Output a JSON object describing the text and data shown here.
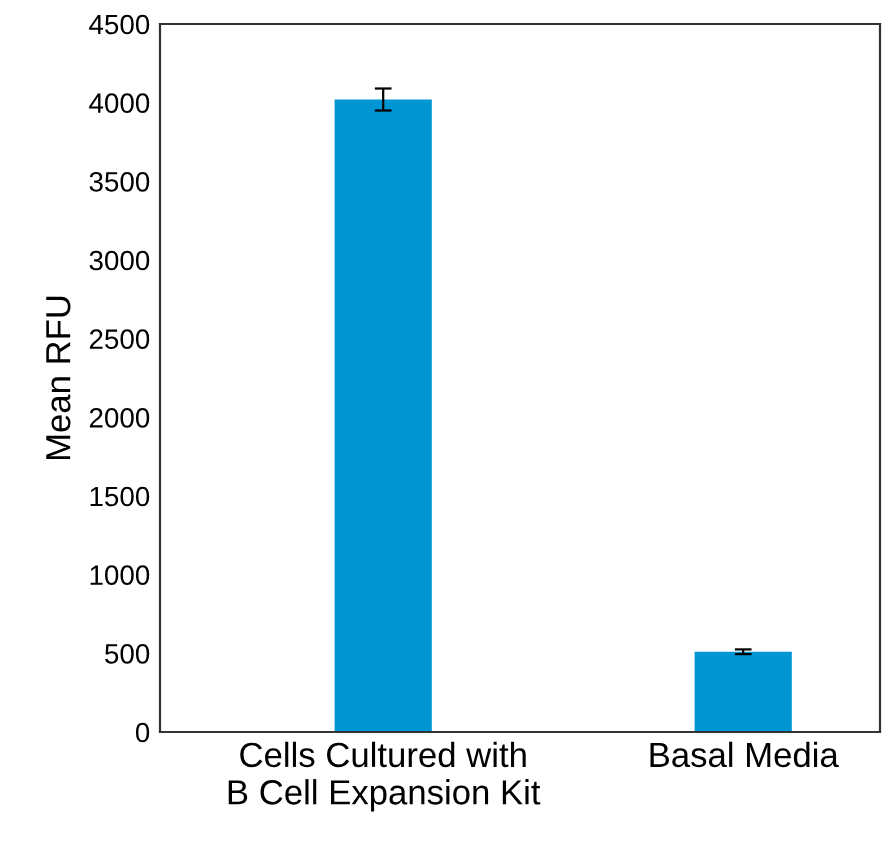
{
  "chart_data": {
    "type": "bar",
    "ylabel": "Mean RFU",
    "categories": [
      "Cells Cultured with\nB Cell Expansion Kit",
      "Basal Media"
    ],
    "values": [
      4020,
      510
    ],
    "errors": [
      70,
      15
    ],
    "color": "#0095d3",
    "ylim": [
      0,
      4500
    ],
    "yticks": [
      0,
      500,
      1000,
      1500,
      2000,
      2500,
      3000,
      3500,
      4000,
      4500
    ],
    "grid": false,
    "legend": false
  }
}
